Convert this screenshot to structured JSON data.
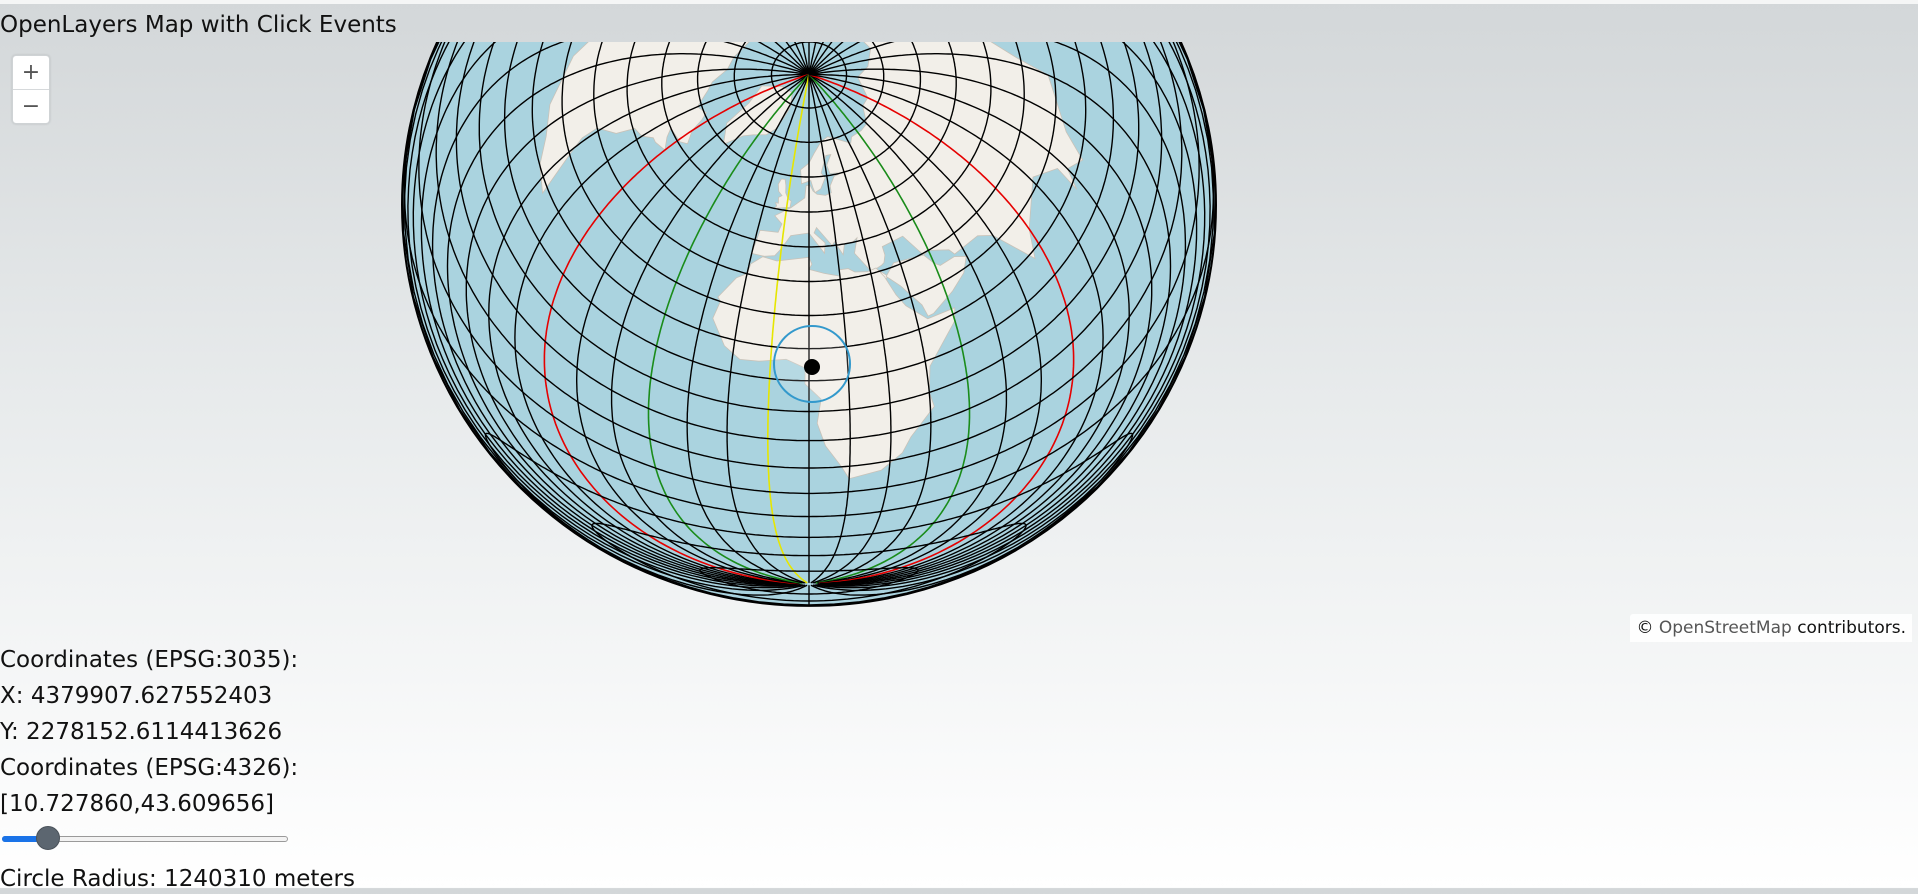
{
  "page": {
    "title": "OpenLayers Map with Click Events"
  },
  "map": {
    "projection": "EPSG:3035 (LAEA Europe)",
    "graticule_color": "#000000",
    "highlight_meridian_colors": {
      "red": "#e60000",
      "green": "#1a8c1a",
      "yellow": "#e6e600"
    },
    "ocean_color": "#aad3df",
    "land_color": "#f2efe9",
    "marker": {
      "icon": "black-dot-icon",
      "circle_color": "#3399cc"
    },
    "zoom": {
      "in_label": "+",
      "out_label": "−"
    },
    "attribution": {
      "prefix": "©",
      "link_text": "OpenStreetMap",
      "suffix": "contributors."
    }
  },
  "info": {
    "coords_3035_label": "Coordinates (EPSG:3035):",
    "x_text": "X: 4379907.627552403",
    "y_text": "Y: 2278152.6114413626",
    "coords_4326_label": "Coordinates (EPSG:4326):",
    "lonlat_text": "[10.727860,43.609656]",
    "radius_text": "Circle Radius: 1240310 meters"
  },
  "slider": {
    "fraction": 0.16,
    "accent": "#1a73e8"
  }
}
